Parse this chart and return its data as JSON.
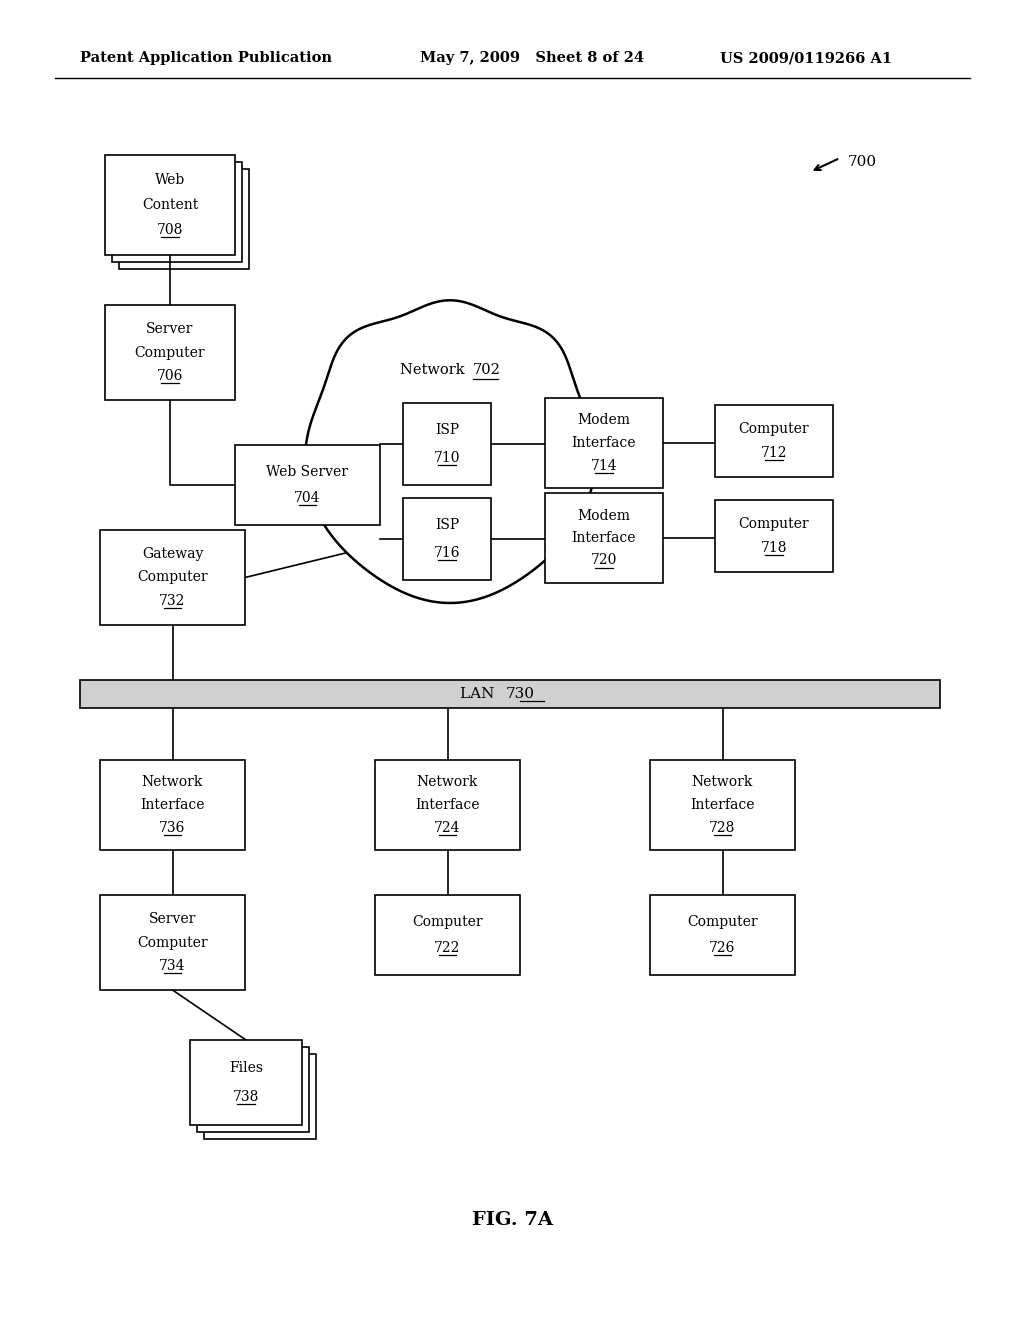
{
  "header_left": "Patent Application Publication",
  "header_mid": "May 7, 2009   Sheet 8 of 24",
  "header_right": "US 2009/0119266 A1",
  "fig_label": "FIG. 7A",
  "bg_color": "#ffffff"
}
